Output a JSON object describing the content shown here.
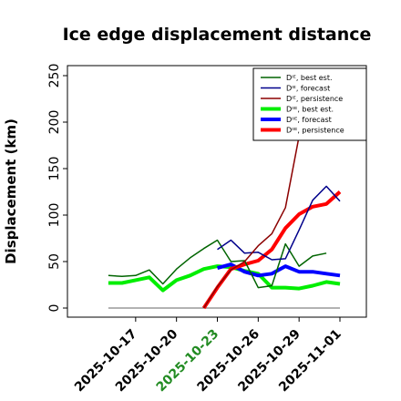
{
  "chart_data": {
    "type": "line",
    "title": "Ice edge displacement distance",
    "xlabel": "",
    "ylabel": "Displacement (km)",
    "ylim": [
      -7,
      262
    ],
    "xlim": [
      "2025-10-14",
      "2025-11-01"
    ],
    "yticks": [
      "0",
      "50",
      "100",
      "150",
      "200",
      "250"
    ],
    "xticks": [
      {
        "label": "2025-10-17",
        "color": "#000000"
      },
      {
        "label": "2025-10-20",
        "color": "#000000"
      },
      {
        "label": "2025-10-23",
        "color": "#228b22"
      },
      {
        "label": "2025-10-26",
        "color": "#000000"
      },
      {
        "label": "2025-10-29",
        "color": "#000000"
      },
      {
        "label": "2025-11-01",
        "color": "#000000"
      }
    ],
    "legend_position": "top-right",
    "grid": false,
    "series": [
      {
        "name": "Dᴵᴱ, best est.",
        "color": "#006400",
        "width": 1.5,
        "x": [
          "2025-10-15",
          "2025-10-16",
          "2025-10-17",
          "2025-10-18",
          "2025-10-19",
          "2025-10-20",
          "2025-10-21",
          "2025-10-22",
          "2025-10-23",
          "2025-10-24",
          "2025-10-25",
          "2025-10-26",
          "2025-10-27",
          "2025-10-28",
          "2025-10-29",
          "2025-10-30",
          "2025-10-31",
          "2025-11-01"
        ],
        "y": [
          35,
          34,
          35,
          41,
          26,
          42,
          54,
          64,
          73,
          50,
          51,
          22,
          24,
          69,
          45,
          56,
          59,
          null
        ]
      },
      {
        "name": "Dᴵᴱ, forecast",
        "color": "#00008b",
        "width": 1.5,
        "x": [
          "2025-10-23",
          "2025-10-24",
          "2025-10-25",
          "2025-10-26",
          "2025-10-27",
          "2025-10-28",
          "2025-10-29",
          "2025-10-30",
          "2025-10-31",
          "2025-11-01"
        ],
        "y": [
          63,
          73,
          59,
          60,
          52,
          53,
          84,
          116,
          131,
          115
        ]
      },
      {
        "name": "Dᴵᴱ, persistence",
        "color": "#8b0000",
        "width": 1.5,
        "x": [
          "2025-10-22",
          "2025-10-23",
          "2025-10-24",
          "2025-10-25",
          "2025-10-26",
          "2025-10-27",
          "2025-10-28",
          "2025-10-29"
        ],
        "y": [
          0,
          23,
          41,
          50,
          67,
          80,
          108,
          185
        ]
      },
      {
        "name": "Dᴵᴵᴱ, best est.",
        "color": "#00ee00",
        "width": 4,
        "x": [
          "2025-10-15",
          "2025-10-16",
          "2025-10-17",
          "2025-10-18",
          "2025-10-19",
          "2025-10-20",
          "2025-10-21",
          "2025-10-22",
          "2025-10-23",
          "2025-10-24",
          "2025-10-25",
          "2025-10-26",
          "2025-10-27",
          "2025-10-28",
          "2025-10-29",
          "2025-10-30",
          "2025-10-31",
          "2025-11-01"
        ],
        "y": [
          27,
          27,
          30,
          33,
          19,
          30,
          35,
          42,
          45,
          44,
          40,
          37,
          22,
          22,
          21,
          24,
          28,
          26
        ]
      },
      {
        "name": "Dᴵᴵᴱ, forecast",
        "color": "#0000ff",
        "width": 4,
        "x": [
          "2025-10-23",
          "2025-10-24",
          "2025-10-25",
          "2025-10-26",
          "2025-10-27",
          "2025-10-28",
          "2025-10-29",
          "2025-10-30",
          "2025-10-31",
          "2025-11-01"
        ],
        "y": [
          43,
          47,
          39,
          35,
          37,
          45,
          39,
          39,
          37,
          35
        ]
      },
      {
        "name": "Dᴵᴵᴱ, persistence",
        "color": "#ff0000",
        "width": 4,
        "x": [
          "2025-10-22",
          "2025-10-23",
          "2025-10-24",
          "2025-10-25",
          "2025-10-26",
          "2025-10-27",
          "2025-10-28",
          "2025-10-29",
          "2025-10-30",
          "2025-10-31",
          "2025-11-01"
        ],
        "y": [
          0,
          22,
          42,
          47,
          51,
          63,
          86,
          101,
          109,
          112,
          125
        ]
      },
      {
        "name": "",
        "color": "#666666",
        "width": 1,
        "legend": false,
        "x": [
          "2025-10-15",
          "2025-11-01"
        ],
        "y": [
          0,
          0
        ]
      }
    ]
  }
}
